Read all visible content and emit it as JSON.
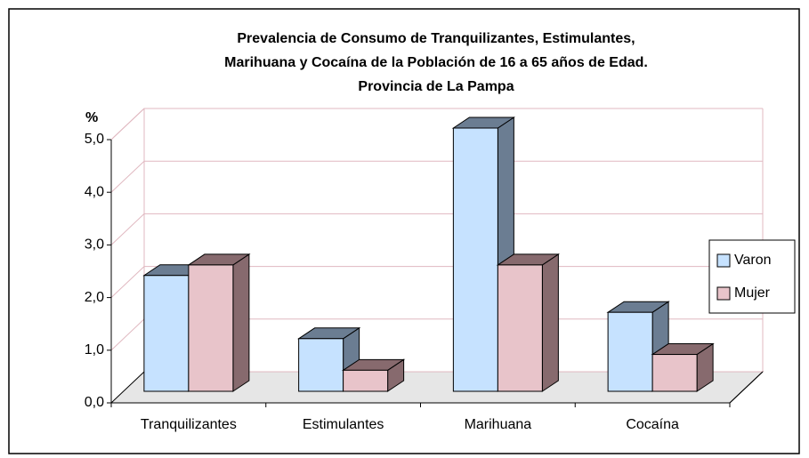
{
  "chart_data": {
    "type": "bar3d",
    "title": [
      "Prevalencia de Consumo de Tranquilizantes, Estimulantes,",
      "Marihuana y Cocaína de la Población de 16 a 65 años de Edad.",
      "Provincia de La Pampa"
    ],
    "y_label": "%",
    "categories": [
      "Tranquilizantes",
      "Estimulantes",
      "Marihuana",
      "Cocaína"
    ],
    "series": [
      {
        "name": "Varon",
        "color": "#c6e2ff",
        "side_color": "#6b7d92",
        "values": [
          2.2,
          1.0,
          5.0,
          1.5
        ]
      },
      {
        "name": "Mujer",
        "color": "#e8c4ca",
        "side_color": "#876a6e",
        "values": [
          2.4,
          0.4,
          2.4,
          0.7
        ]
      }
    ],
    "ylim": [
      0,
      5
    ],
    "yticks": [
      {
        "value": 0,
        "label": "0,0"
      },
      {
        "value": 1,
        "label": "1,0"
      },
      {
        "value": 2,
        "label": "2,0"
      },
      {
        "value": 3,
        "label": "3,0"
      },
      {
        "value": 4,
        "label": "4,0"
      },
      {
        "value": 5,
        "label": "5,0"
      }
    ],
    "grid": true,
    "grid_color": "#e0b8c0",
    "legend": "right"
  }
}
